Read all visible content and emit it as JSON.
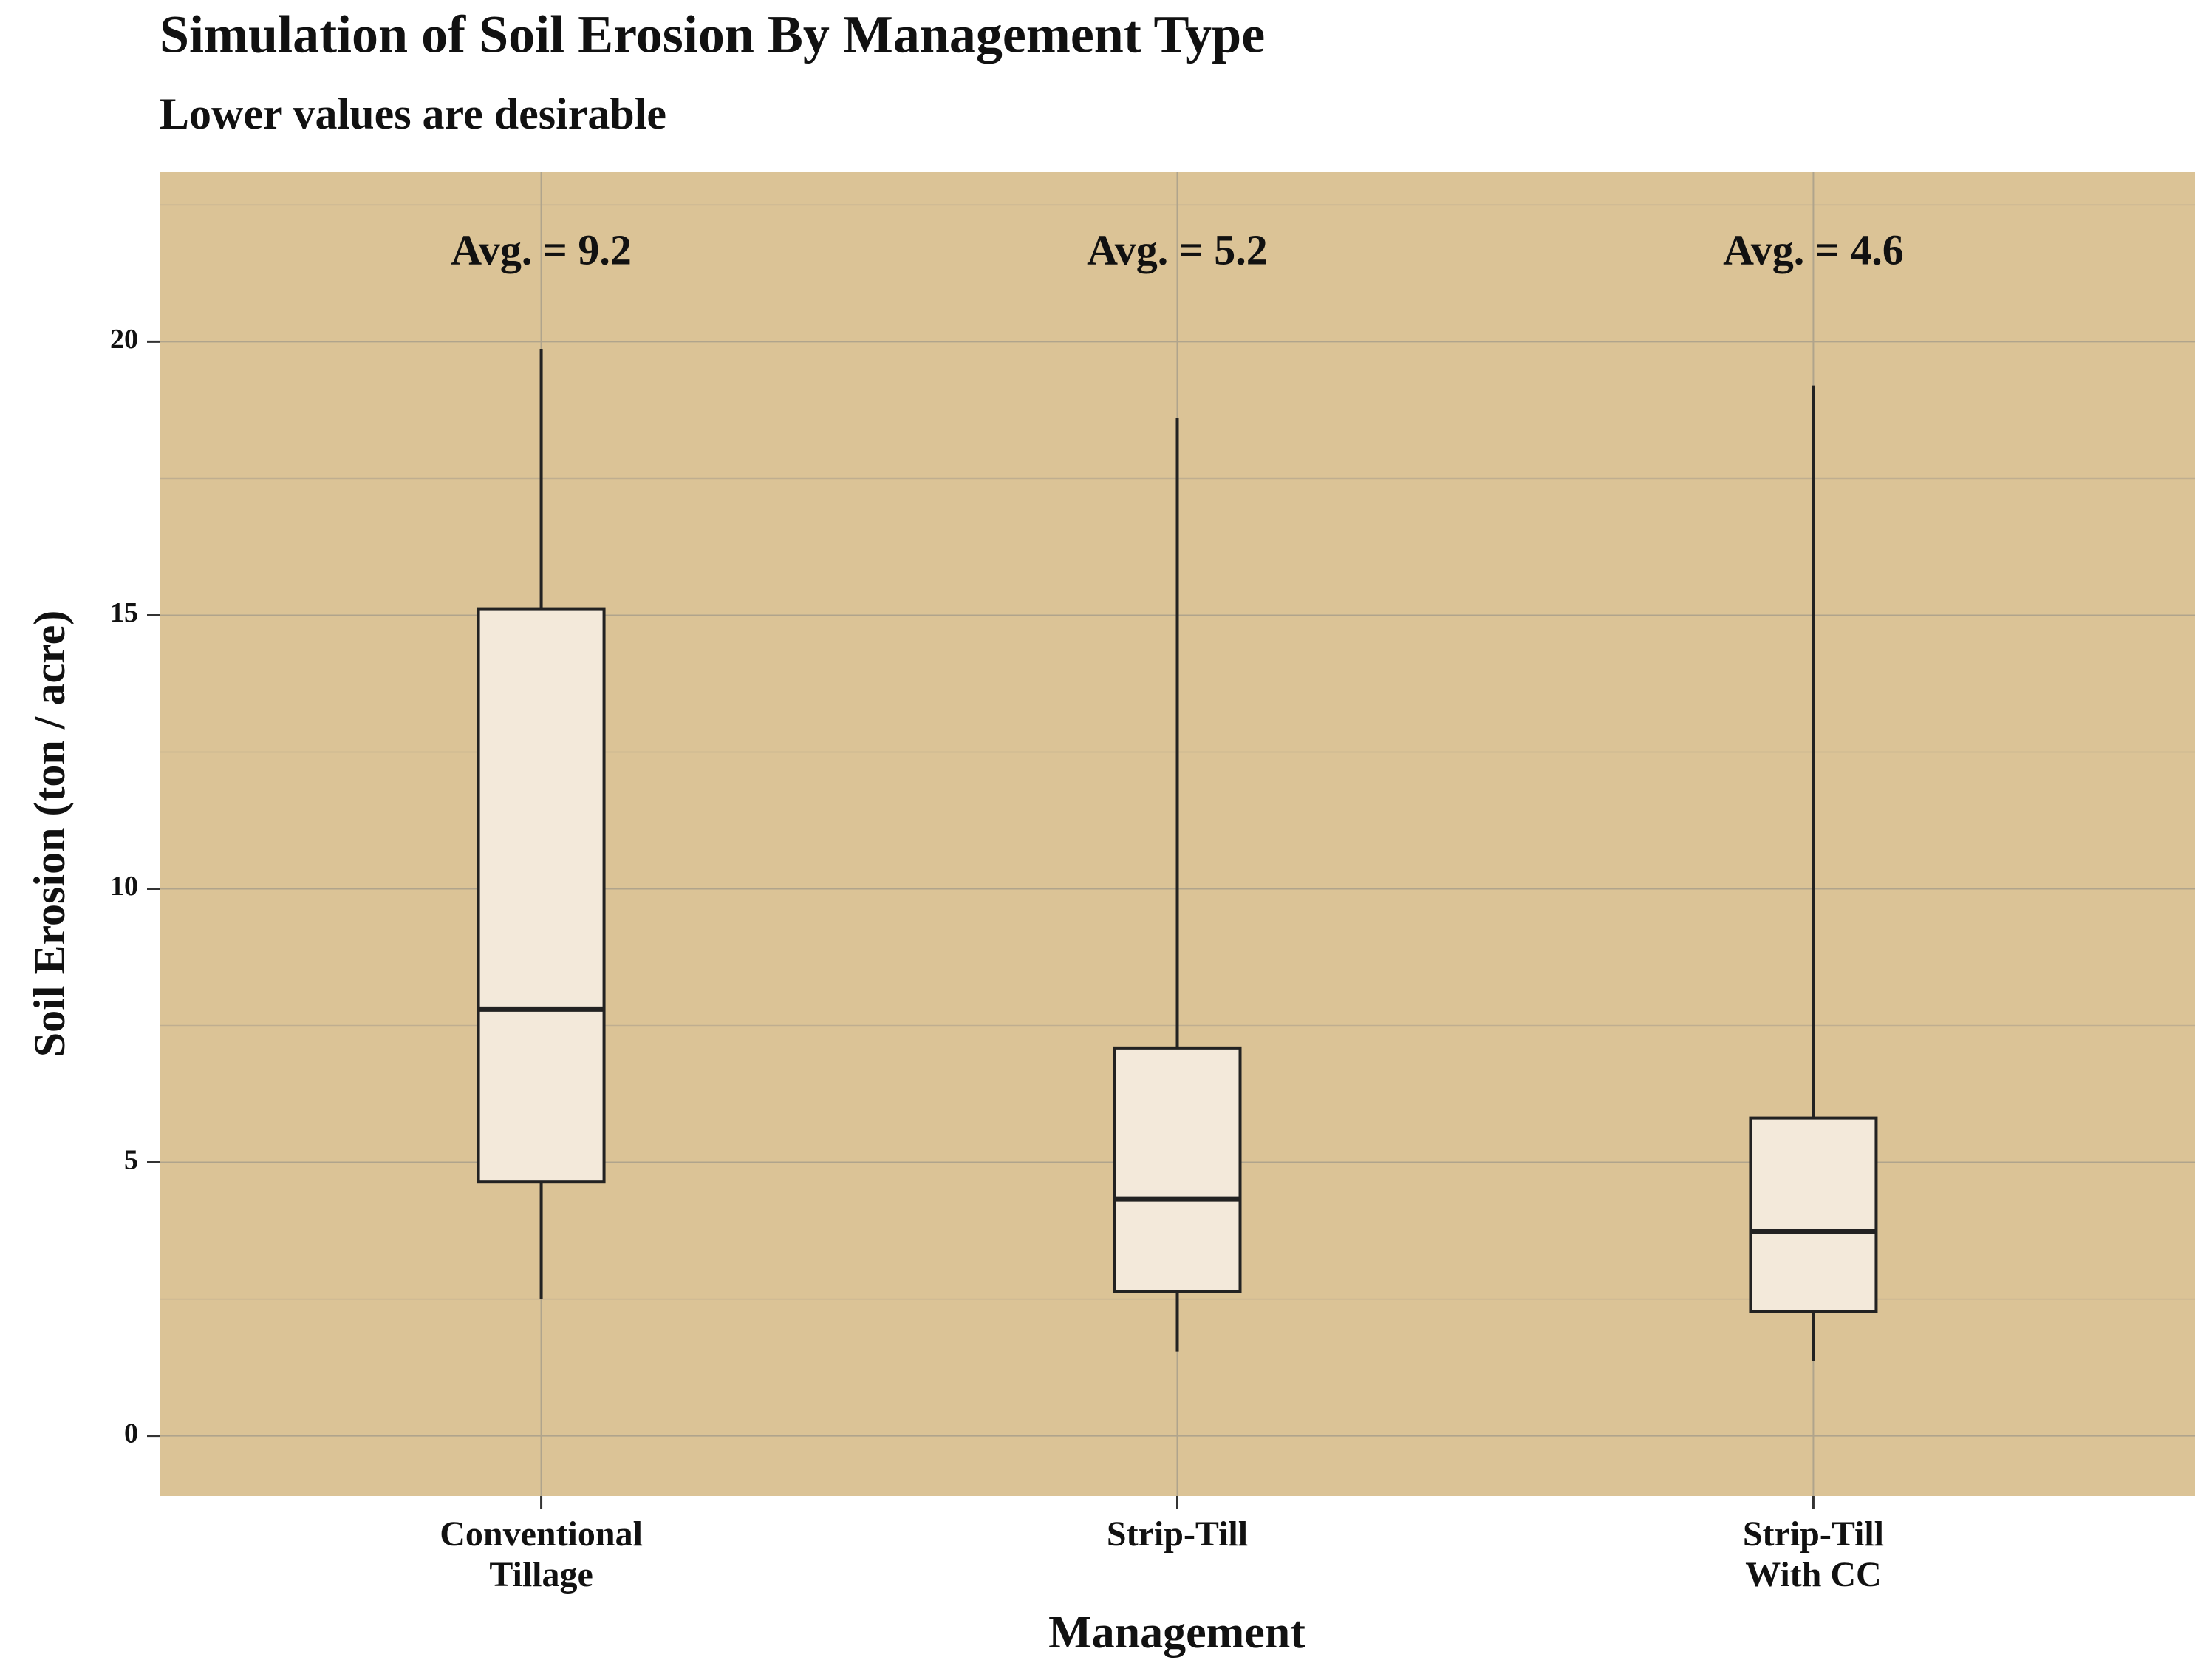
{
  "chart_data": {
    "type": "box",
    "title": "Simulation of Soil Erosion By Management Type",
    "subtitle": "Lower values are desirable",
    "x_label": "Management",
    "y_label": "Soil Erosion (ton / acre)",
    "categories": [
      "Conventional\nTillage",
      "Strip-Till",
      "Strip-Till\nWith CC"
    ],
    "boxes": [
      {
        "min": 2.5,
        "q1": 4.64,
        "median": 7.8,
        "q3": 15.12,
        "max": 19.87
      },
      {
        "min": 1.54,
        "q1": 2.63,
        "median": 4.33,
        "q3": 7.09,
        "max": 18.6
      },
      {
        "min": 1.36,
        "q1": 2.27,
        "median": 3.73,
        "q3": 5.81,
        "max": 19.2
      }
    ],
    "annotations": [
      "Avg. =  9.2",
      "Avg. =  5.2",
      "Avg. =  4.6"
    ],
    "ylim": [
      -1.1,
      23.1
    ],
    "yticks": [
      0,
      5,
      10,
      15,
      20
    ],
    "grid": true,
    "panel_color": "#dbc396",
    "box_fill": "#f3e9da",
    "box_stroke": "#222222"
  }
}
